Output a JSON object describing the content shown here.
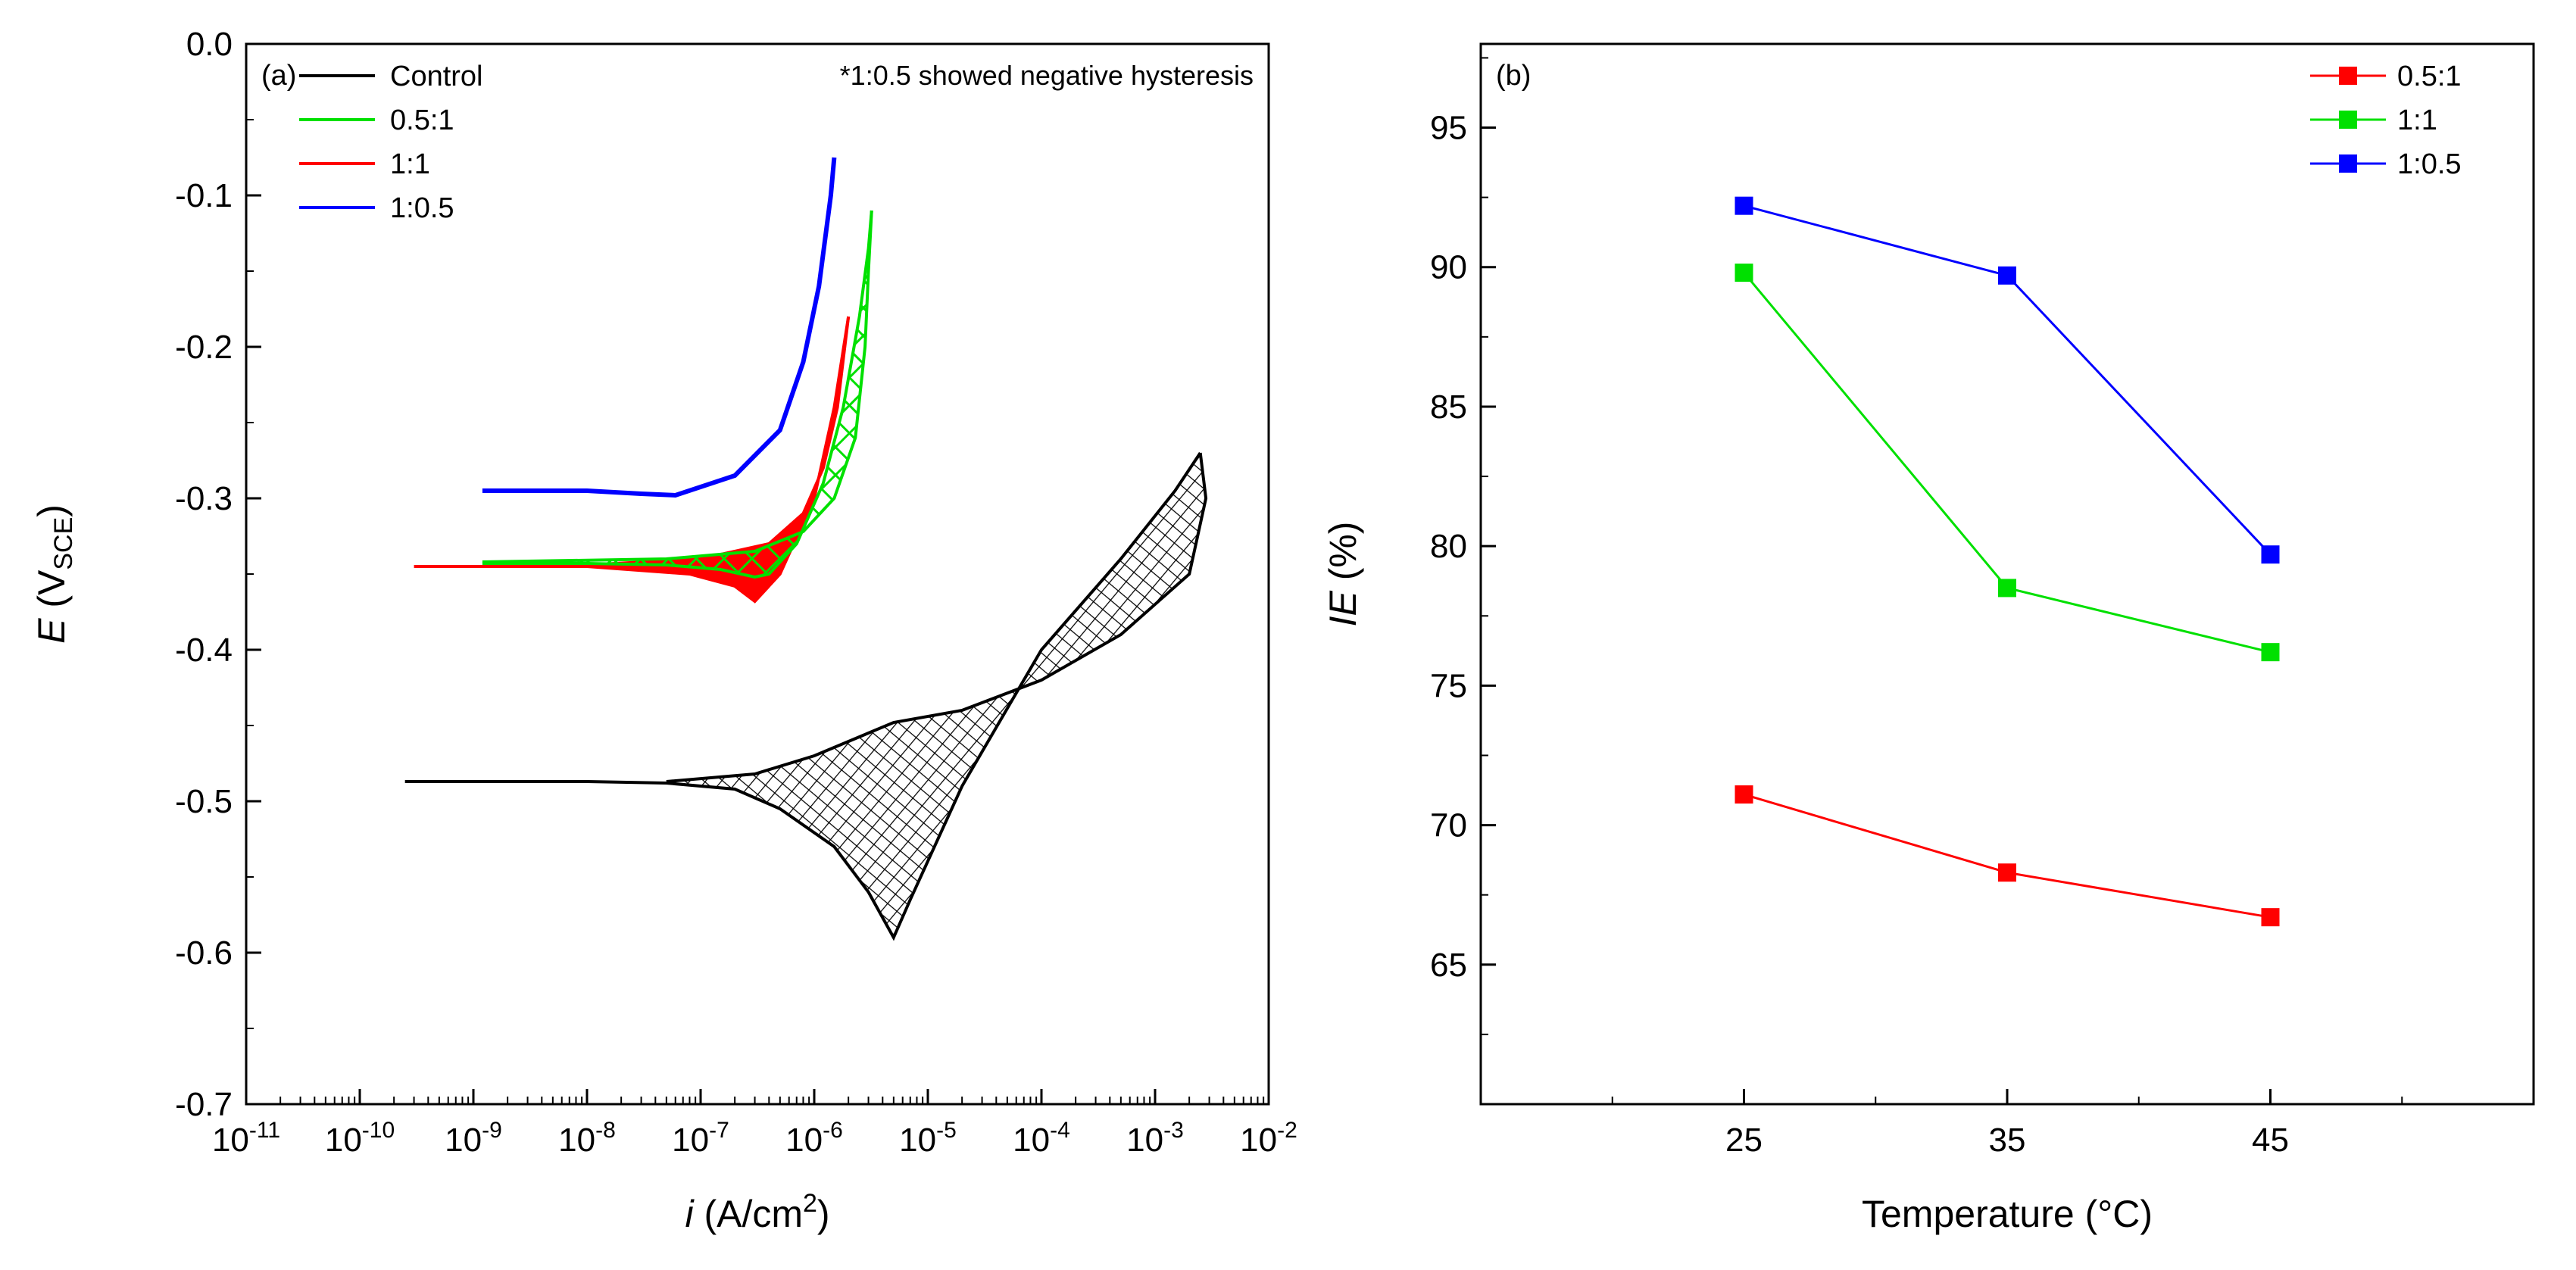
{
  "chart_data": [
    {
      "panel": "(a)",
      "type": "line",
      "xlabel": "i (A/cm²)",
      "ylabel": "E (VSCE)",
      "xscale": "log",
      "xlim": [
        1e-11,
        0.01
      ],
      "ylim": [
        -0.7,
        0.0
      ],
      "x_tick_labels": [
        "10-11",
        "10-10",
        "10-9",
        "10-8",
        "10-7",
        "10-6",
        "10-5",
        "10-4",
        "10-3",
        "10-2"
      ],
      "y_tick_labels": [
        "0.0",
        "-0.1",
        "-0.2",
        "-0.3",
        "-0.4",
        "-0.5",
        "-0.6",
        "-0.7"
      ],
      "annotation": "*1:0.5 showed negative hysteresis",
      "legend_position": "top-left",
      "series": [
        {
          "name": "Control",
          "color": "#000000",
          "hysteresis_hatch": true,
          "forward": [
            [
              2.5e-10,
              -0.487
            ],
            [
              1e-09,
              -0.487
            ],
            [
              1e-08,
              -0.487
            ],
            [
              5e-08,
              -0.488
            ],
            [
              2e-07,
              -0.492
            ],
            [
              5e-07,
              -0.505
            ],
            [
              1.5e-06,
              -0.53
            ],
            [
              3e-06,
              -0.56
            ],
            [
              5e-06,
              -0.59
            ],
            [
              7e-06,
              -0.565
            ],
            [
              2e-05,
              -0.49
            ],
            [
              0.0001,
              -0.4
            ],
            [
              0.0005,
              -0.34
            ],
            [
              0.0015,
              -0.295
            ],
            [
              0.0025,
              -0.27
            ]
          ],
          "reverse": [
            [
              0.0025,
              -0.27
            ],
            [
              0.0028,
              -0.3
            ],
            [
              0.002,
              -0.35
            ],
            [
              0.0005,
              -0.39
            ],
            [
              0.0001,
              -0.42
            ],
            [
              2e-05,
              -0.44
            ],
            [
              5e-06,
              -0.448
            ],
            [
              1e-06,
              -0.47
            ],
            [
              3e-07,
              -0.482
            ],
            [
              5e-08,
              -0.487
            ]
          ]
        },
        {
          "name": "0.5:1",
          "color": "#00e000",
          "hysteresis_hatch": true,
          "forward": [
            [
              1.2e-09,
              -0.343
            ],
            [
              1e-08,
              -0.343
            ],
            [
              5e-08,
              -0.344
            ],
            [
              1.5e-07,
              -0.347
            ],
            [
              3e-07,
              -0.352
            ],
            [
              4e-07,
              -0.35
            ],
            [
              7e-07,
              -0.33
            ],
            [
              1.2e-06,
              -0.29
            ],
            [
              1.8e-06,
              -0.24
            ],
            [
              2.5e-06,
              -0.18
            ],
            [
              3e-06,
              -0.135
            ],
            [
              3.2e-06,
              -0.11
            ]
          ],
          "reverse": [
            [
              3.2e-06,
              -0.11
            ],
            [
              3e-06,
              -0.15
            ],
            [
              2.8e-06,
              -0.2
            ],
            [
              2.3e-06,
              -0.26
            ],
            [
              1.5e-06,
              -0.3
            ],
            [
              8e-07,
              -0.322
            ],
            [
              3e-07,
              -0.335
            ],
            [
              5e-08,
              -0.34
            ],
            [
              1.2e-09,
              -0.342
            ]
          ]
        },
        {
          "name": "1:1",
          "color": "#ff0000",
          "hysteresis_hatch": true,
          "forward": [
            [
              3e-10,
              -0.345
            ],
            [
              1e-08,
              -0.345
            ],
            [
              8e-08,
              -0.35
            ],
            [
              2e-07,
              -0.358
            ],
            [
              3e-07,
              -0.368
            ],
            [
              5e-07,
              -0.35
            ],
            [
              1e-06,
              -0.3
            ],
            [
              1.5e-06,
              -0.24
            ],
            [
              2e-06,
              -0.18
            ]
          ],
          "reverse": [
            [
              2e-06,
              -0.18
            ],
            [
              1.6e-06,
              -0.24
            ],
            [
              1.2e-06,
              -0.28
            ],
            [
              8e-07,
              -0.31
            ],
            [
              4e-07,
              -0.33
            ],
            [
              1e-07,
              -0.34
            ],
            [
              1e-08,
              -0.344
            ]
          ]
        },
        {
          "name": "1:0.5",
          "color": "#0000ff",
          "hysteresis_hatch": false,
          "forward": [
            [
              1.2e-09,
              -0.295
            ],
            [
              1e-08,
              -0.295
            ],
            [
              3e-08,
              -0.297
            ],
            [
              6e-08,
              -0.298
            ],
            [
              2e-07,
              -0.285
            ],
            [
              5e-07,
              -0.255
            ],
            [
              8e-07,
              -0.21
            ],
            [
              1.1e-06,
              -0.16
            ],
            [
              1.4e-06,
              -0.1
            ],
            [
              1.5e-06,
              -0.075
            ]
          ]
        }
      ]
    },
    {
      "panel": "(b)",
      "type": "line",
      "xlabel": "Temperature (°C)",
      "ylabel": "IE (%)",
      "categories": [
        25,
        35,
        45
      ],
      "xlim": [
        15,
        55
      ],
      "ylim": [
        60,
        98
      ],
      "y_tick_labels": [
        "65",
        "70",
        "75",
        "80",
        "85",
        "90",
        "95"
      ],
      "marker": "square",
      "legend_position": "top-right",
      "series": [
        {
          "name": "0.5:1",
          "color": "#ff0000",
          "values": [
            71.1,
            68.3,
            66.7
          ]
        },
        {
          "name": "1:1",
          "color": "#00e000",
          "values": [
            89.8,
            78.5,
            76.2
          ]
        },
        {
          "name": "1:0.5",
          "color": "#0000ff",
          "values": [
            92.2,
            89.7,
            79.7
          ]
        }
      ]
    }
  ]
}
